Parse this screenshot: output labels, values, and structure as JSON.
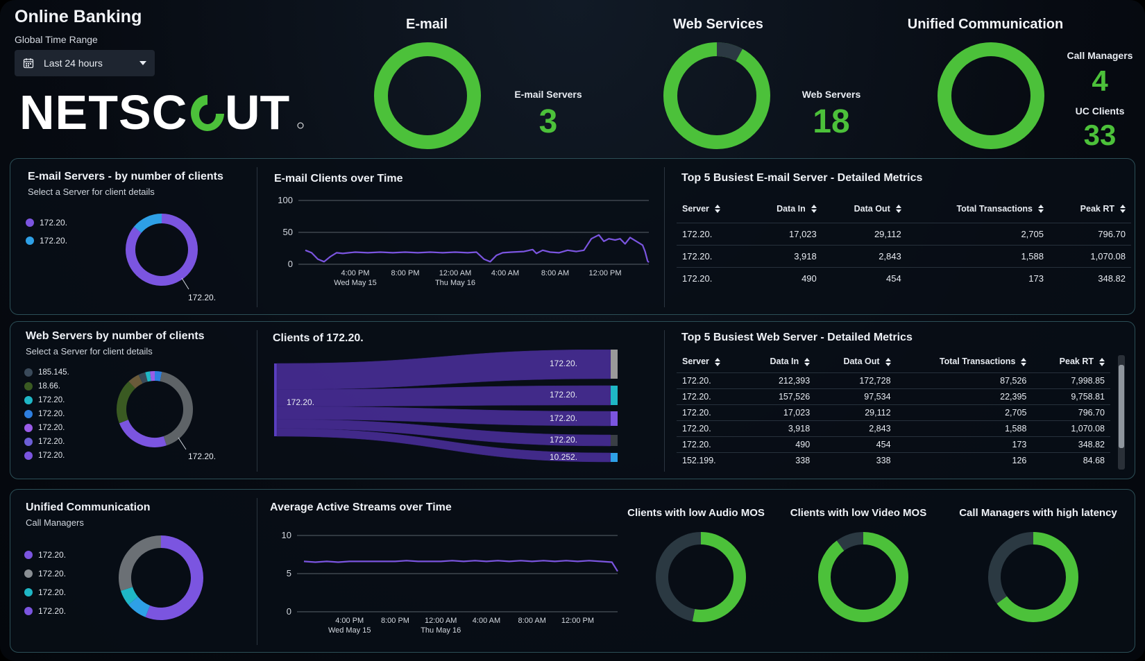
{
  "header": {
    "app_title": "Online Banking",
    "range_label": "Global Time Range",
    "range_value": "Last 24 hours",
    "logo_text": "NETSCOUT",
    "calendar_icon": "calendar-icon",
    "caret_icon": "chevron-down-icon"
  },
  "colors": {
    "green": "#4cc13a",
    "purple": "#7b55e0",
    "blue": "#2ea0e6",
    "grey": "#5e6367",
    "dark": "#2b3942",
    "teal": "#1fb7c6"
  },
  "kpis": {
    "email": {
      "title": "E-mail",
      "label": "E-mail Servers",
      "value": "3",
      "ring": [
        1.0
      ]
    },
    "web": {
      "title": "Web Services",
      "label": "Web Servers",
      "value": "18",
      "ring": [
        0.92,
        0.08
      ]
    },
    "uc": {
      "title": "Unified Communication",
      "label1": "Call Managers",
      "value1": "4",
      "label2": "UC Clients",
      "value2": "33",
      "ring": [
        1.0
      ]
    }
  },
  "email_panel": {
    "title": "E-mail Servers - by number of clients",
    "subtitle": "Select a Server for client details",
    "legend": [
      {
        "label": "172.20.",
        "color": "#7b55e0"
      },
      {
        "label": "172.20.",
        "color": "#2ea0e6"
      }
    ],
    "donut_callout": "172.20.",
    "donut": [
      {
        "value": 0.86,
        "color": "#7b55e0"
      },
      {
        "value": 0.14,
        "color": "#2ea0e6"
      }
    ],
    "chart_title": "E-mail Clients over Time",
    "table_title": "Top 5 Busiest E-mail Server - Detailed Metrics",
    "columns": [
      "Server",
      "Data In",
      "Data Out",
      "Total Transactions",
      "Peak RT"
    ],
    "rows": [
      [
        "172.20.",
        "17,023",
        "29,112",
        "2,705",
        "796.70"
      ],
      [
        "172.20.",
        "3,918",
        "2,843",
        "1,588",
        "1,070.08"
      ],
      [
        "172.20.",
        "490",
        "454",
        "173",
        "348.82"
      ]
    ]
  },
  "web_panel": {
    "title": "Web Servers by number of clients",
    "subtitle": "Select a Server for client details",
    "legend": [
      {
        "label": "185.145.",
        "color": "#3a4a5a"
      },
      {
        "label": "18.66.",
        "color": "#3a5a22"
      },
      {
        "label": "172.20.",
        "color": "#1fb7c6"
      },
      {
        "label": "172.20.",
        "color": "#2e7fe0"
      },
      {
        "label": "172.20.",
        "color": "#9a5ce8"
      },
      {
        "label": "172.20.",
        "color": "#6c5fd6"
      },
      {
        "label": "172.20.",
        "color": "#7b55e0"
      }
    ],
    "donut_callout": "172.20.",
    "donut": [
      {
        "value": 0.03,
        "color": "#2e7fe0"
      },
      {
        "value": 0.42,
        "color": "#5e6367"
      },
      {
        "value": 0.24,
        "color": "#7b55e0"
      },
      {
        "value": 0.19,
        "color": "#3a5a22"
      },
      {
        "value": 0.05,
        "color": "#6a5a3a"
      },
      {
        "value": 0.03,
        "color": "#3a4a5a"
      },
      {
        "value": 0.02,
        "color": "#1fb7c6"
      },
      {
        "value": 0.02,
        "color": "#9a5ce8"
      }
    ],
    "sankey_title": "Clients of 172.20.",
    "sankey_source": "172.20.",
    "sankey_targets": [
      {
        "label": "172.20.",
        "weight": 0.4,
        "color": "#9a9a9a"
      },
      {
        "label": "172.20.",
        "weight": 0.26,
        "color": "#1fb7c6"
      },
      {
        "label": "172.20.",
        "weight": 0.2,
        "color": "#7b55e0"
      },
      {
        "label": "172.20.",
        "weight": 0.14,
        "color": "#3a3f45"
      },
      {
        "label": "10.252.",
        "weight": 0.12,
        "color": "#2ea0e6"
      }
    ],
    "table_title": "Top 5 Busiest Web Server - Detailed Metrics",
    "columns": [
      "Server",
      "Data In",
      "Data Out",
      "Total Transactions",
      "Peak RT"
    ],
    "rows": [
      [
        "172.20.",
        "212,393",
        "172,728",
        "87,526",
        "7,998.85"
      ],
      [
        "172.20.",
        "157,526",
        "97,534",
        "22,395",
        "9,758.81"
      ],
      [
        "172.20.",
        "17,023",
        "29,112",
        "2,705",
        "796.70"
      ],
      [
        "172.20.",
        "3,918",
        "2,843",
        "1,588",
        "1,070.08"
      ],
      [
        "172.20.",
        "490",
        "454",
        "173",
        "348.82"
      ],
      [
        "152.199.",
        "338",
        "338",
        "126",
        "84.68"
      ]
    ]
  },
  "uc_panel": {
    "title": "Unified Communication",
    "subtitle": "Call Managers",
    "legend": [
      {
        "label": "172.20.",
        "color": "#7b55e0"
      },
      {
        "label": "172.20.",
        "color": "#8a8f94"
      },
      {
        "label": "172.20.",
        "color": "#1fb7c6"
      },
      {
        "label": "172.20.",
        "color": "#7b55e0"
      }
    ],
    "donut": [
      {
        "value": 0.56,
        "color": "#7b55e0"
      },
      {
        "value": 0.08,
        "color": "#2ea0e6"
      },
      {
        "value": 0.06,
        "color": "#1fb7c6"
      },
      {
        "value": 0.3,
        "color": "#6b7075"
      }
    ],
    "chart_title": "Average Active Streams over Time",
    "mos": [
      {
        "title": "Clients with low Audio MOS",
        "green": 0.53
      },
      {
        "title": "Clients with low Video MOS",
        "green": 0.9
      },
      {
        "title": "Call Managers with high latency",
        "green": 0.65
      }
    ]
  },
  "chart_data": [
    {
      "type": "line",
      "title": "E-mail Clients over Time",
      "ylim": [
        0,
        100
      ],
      "yticks": [
        0,
        50,
        100
      ],
      "xticks": [
        {
          "label": "4:00 PM",
          "sub": "Wed May 15",
          "t": 4
        },
        {
          "label": "8:00 PM",
          "sub": "",
          "t": 8
        },
        {
          "label": "12:00 AM",
          "sub": "Thu May 16",
          "t": 12
        },
        {
          "label": "4:00 AM",
          "sub": "",
          "t": 16
        },
        {
          "label": "8:00 AM",
          "sub": "",
          "t": 20
        },
        {
          "label": "12:00 PM",
          "sub": "",
          "t": 24
        }
      ],
      "xlim": [
        0,
        27.5
      ],
      "series": [
        {
          "color": "#7b55e0",
          "points": [
            [
              0,
              22
            ],
            [
              0.5,
              18
            ],
            [
              1,
              8
            ],
            [
              1.5,
              4
            ],
            [
              2,
              12
            ],
            [
              2.5,
              18
            ],
            [
              3,
              17
            ],
            [
              3.5,
              18
            ],
            [
              4,
              19
            ],
            [
              5,
              18
            ],
            [
              6,
              19
            ],
            [
              7,
              18
            ],
            [
              8,
              19
            ],
            [
              9,
              18
            ],
            [
              10,
              19
            ],
            [
              11,
              18
            ],
            [
              12,
              19
            ],
            [
              13,
              18
            ],
            [
              13.7,
              19
            ],
            [
              14.3,
              8
            ],
            [
              14.8,
              4
            ],
            [
              15.3,
              14
            ],
            [
              15.8,
              18
            ],
            [
              16.5,
              19
            ],
            [
              17.5,
              20
            ],
            [
              18.2,
              23
            ],
            [
              18.5,
              17
            ],
            [
              19,
              22
            ],
            [
              19.6,
              19
            ],
            [
              20.3,
              18
            ],
            [
              21,
              22
            ],
            [
              21.7,
              20
            ],
            [
              22.3,
              22
            ],
            [
              22.9,
              40
            ],
            [
              23.5,
              46
            ],
            [
              23.9,
              36
            ],
            [
              24.3,
              40
            ],
            [
              24.8,
              38
            ],
            [
              25.2,
              40
            ],
            [
              25.6,
              32
            ],
            [
              26,
              42
            ],
            [
              26.5,
              36
            ],
            [
              27,
              30
            ],
            [
              27.2,
              20
            ],
            [
              27.4,
              5
            ],
            [
              27.5,
              3
            ]
          ]
        }
      ]
    },
    {
      "type": "line",
      "title": "Average Active Streams over Time",
      "ylim": [
        0,
        10
      ],
      "yticks": [
        0,
        5,
        10
      ],
      "xticks": [
        {
          "label": "4:00 PM",
          "sub": "Wed May 15",
          "t": 4
        },
        {
          "label": "8:00 PM",
          "sub": "",
          "t": 8
        },
        {
          "label": "12:00 AM",
          "sub": "Thu May 16",
          "t": 12
        },
        {
          "label": "4:00 AM",
          "sub": "",
          "t": 16
        },
        {
          "label": "8:00 AM",
          "sub": "",
          "t": 20
        },
        {
          "label": "12:00 PM",
          "sub": "",
          "t": 24
        }
      ],
      "xlim": [
        0,
        27.5
      ],
      "series": [
        {
          "color": "#7b55e0",
          "points": [
            [
              0,
              6.6
            ],
            [
              1,
              6.5
            ],
            [
              2,
              6.6
            ],
            [
              3,
              6.5
            ],
            [
              4,
              6.6
            ],
            [
              5,
              6.6
            ],
            [
              6,
              6.6
            ],
            [
              7,
              6.6
            ],
            [
              8,
              6.6
            ],
            [
              9,
              6.7
            ],
            [
              10,
              6.6
            ],
            [
              11,
              6.6
            ],
            [
              12,
              6.6
            ],
            [
              13,
              6.7
            ],
            [
              14,
              6.6
            ],
            [
              15,
              6.7
            ],
            [
              16,
              6.6
            ],
            [
              17,
              6.7
            ],
            [
              18,
              6.6
            ],
            [
              19,
              6.7
            ],
            [
              20,
              6.6
            ],
            [
              21,
              6.7
            ],
            [
              22,
              6.6
            ],
            [
              23,
              6.7
            ],
            [
              24,
              6.6
            ],
            [
              25,
              6.7
            ],
            [
              26,
              6.6
            ],
            [
              27,
              6.5
            ],
            [
              27.5,
              5.3
            ]
          ]
        }
      ]
    }
  ]
}
